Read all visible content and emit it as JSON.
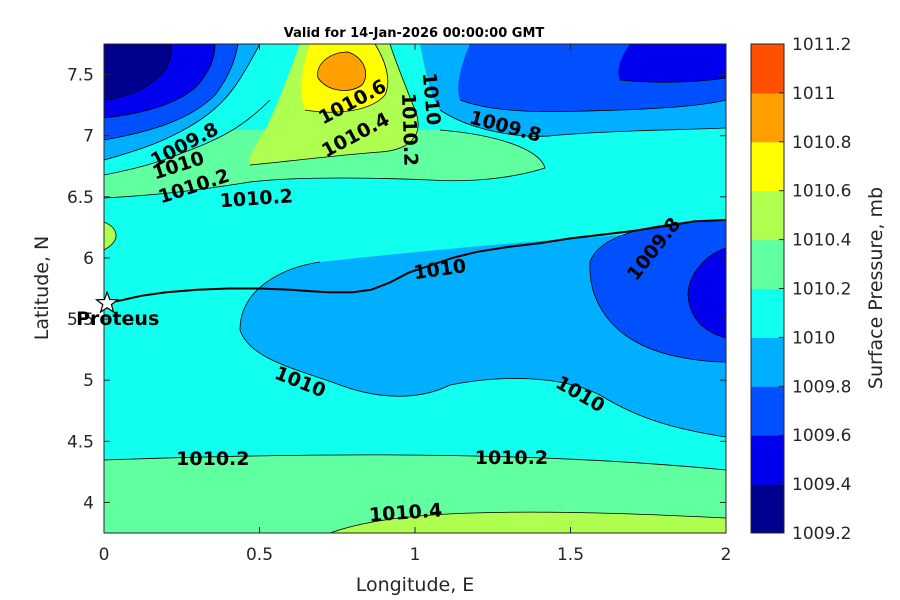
{
  "chart_data": {
    "type": "contour",
    "title": "Valid for 14-Jan-2026 00:00:00 GMT",
    "xlabel": "Longitude, E",
    "ylabel": "Latitude, N",
    "xlim": [
      0,
      2
    ],
    "ylim": [
      3.75,
      7.75
    ],
    "xticks": [
      "0",
      "0.5",
      "1",
      "1.5",
      "2"
    ],
    "yticks": [
      "4",
      "4.5",
      "5",
      "5.5",
      "6",
      "6.5",
      "7",
      "7.5"
    ],
    "colorbar": {
      "label": "Surface Pressure, mb",
      "levels": [
        1009.2,
        1009.4,
        1009.6,
        1009.8,
        1010,
        1010.2,
        1010.4,
        1010.6,
        1010.8,
        1011,
        1011.2
      ],
      "tick_labels": [
        "1009.2",
        "1009.4",
        "1009.6",
        "1009.8",
        "1010",
        "1010.2",
        "1010.4",
        "1010.6",
        "1010.8",
        "1011",
        "1011.2"
      ],
      "colors": [
        "#00008f",
        "#0000ef",
        "#0050ff",
        "#00afff",
        "#10ffef",
        "#60ffa0",
        "#afff50",
        "#ffff00",
        "#ffa000",
        "#ff5000",
        "#ff0000"
      ]
    },
    "contour_labels": [
      {
        "text": "1009.8",
        "lon": 0.26,
        "lat": 6.92
      },
      {
        "text": "1010",
        "lon": 0.24,
        "lat": 6.75
      },
      {
        "text": "1010.2",
        "lon": 0.29,
        "lat": 6.58
      },
      {
        "text": "1010.2",
        "lon": 0.49,
        "lat": 6.48
      },
      {
        "text": "1010.6",
        "lon": 0.8,
        "lat": 7.27
      },
      {
        "text": "1010.4",
        "lon": 0.81,
        "lat": 7.0
      },
      {
        "text": "1010",
        "lon": 1.05,
        "lat": 7.3
      },
      {
        "text": "1010.2",
        "lon": 0.98,
        "lat": 7.05
      },
      {
        "text": "1009.8",
        "lon": 1.29,
        "lat": 7.07
      },
      {
        "text": "1010",
        "lon": 1.08,
        "lat": 5.9
      },
      {
        "text": "1009.8",
        "lon": 1.77,
        "lat": 6.07
      },
      {
        "text": "1010",
        "lon": 0.63,
        "lat": 4.98
      },
      {
        "text": "1010",
        "lon": 1.53,
        "lat": 4.88
      },
      {
        "text": "1010.2",
        "lon": 0.35,
        "lat": 4.35
      },
      {
        "text": "1010.2",
        "lon": 1.31,
        "lat": 4.36
      },
      {
        "text": "1010.4",
        "lon": 0.97,
        "lat": 3.91
      }
    ],
    "track": {
      "name": "Proteus",
      "points": [
        [
          0.0,
          5.63
        ],
        [
          0.05,
          5.65
        ],
        [
          0.12,
          5.69
        ],
        [
          0.2,
          5.72
        ],
        [
          0.3,
          5.74
        ],
        [
          0.4,
          5.75
        ],
        [
          0.5,
          5.75
        ],
        [
          0.6,
          5.74
        ],
        [
          0.65,
          5.73
        ],
        [
          0.72,
          5.72
        ],
        [
          0.8,
          5.72
        ],
        [
          0.86,
          5.74
        ],
        [
          0.92,
          5.8
        ],
        [
          0.98,
          5.88
        ],
        [
          1.05,
          5.94
        ],
        [
          1.12,
          6.0
        ],
        [
          1.2,
          6.05
        ],
        [
          1.3,
          6.09
        ],
        [
          1.4,
          6.12
        ],
        [
          1.5,
          6.16
        ],
        [
          1.6,
          6.19
        ],
        [
          1.7,
          6.22
        ],
        [
          1.8,
          6.26
        ],
        [
          1.9,
          6.3
        ],
        [
          2.0,
          6.31
        ]
      ]
    },
    "marker": {
      "name": "Proteus",
      "lon": 0.01,
      "lat": 5.63
    }
  }
}
